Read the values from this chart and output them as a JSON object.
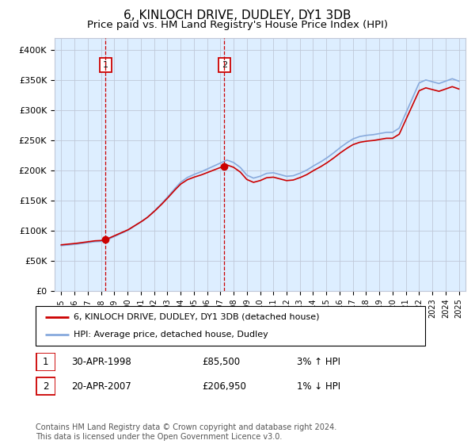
{
  "title": "6, KINLOCH DRIVE, DUDLEY, DY1 3DB",
  "subtitle": "Price paid vs. HM Land Registry's House Price Index (HPI)",
  "title_fontsize": 11,
  "subtitle_fontsize": 9.5,
  "ylim": [
    0,
    420000
  ],
  "yticks": [
    0,
    50000,
    100000,
    150000,
    200000,
    250000,
    300000,
    350000,
    400000
  ],
  "ytick_labels": [
    "£0",
    "£50K",
    "£100K",
    "£150K",
    "£200K",
    "£250K",
    "£300K",
    "£350K",
    "£400K"
  ],
  "xlim_start": 1994.5,
  "xlim_end": 2025.5,
  "sale1_year": 1998.33,
  "sale1_price": 85500,
  "sale2_year": 2007.3,
  "sale2_price": 206950,
  "legend_line1": "6, KINLOCH DRIVE, DUDLEY, DY1 3DB (detached house)",
  "legend_line2": "HPI: Average price, detached house, Dudley",
  "table_row1": [
    "1",
    "30-APR-1998",
    "£85,500",
    "3% ↑ HPI"
  ],
  "table_row2": [
    "2",
    "20-APR-2007",
    "£206,950",
    "1% ↓ HPI"
  ],
  "footer": "Contains HM Land Registry data © Crown copyright and database right 2024.\nThis data is licensed under the Open Government Licence v3.0.",
  "property_color": "#cc0000",
  "hpi_color": "#88aadd",
  "bg_color": "#ddeeff",
  "grid_color": "#c0c8d8",
  "box_color": "#cc0000"
}
